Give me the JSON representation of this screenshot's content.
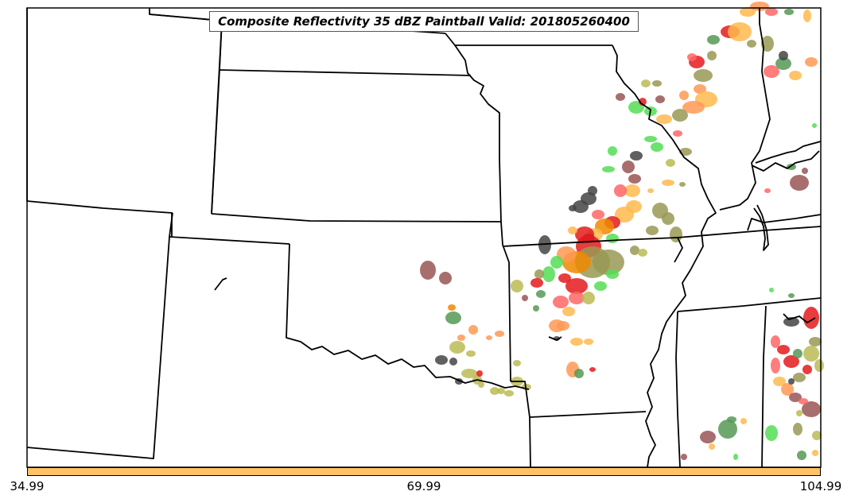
{
  "title": "Composite Reflectivity 35 dBZ Paintball Valid: 201805260400",
  "colors": {
    "colorbar": "#ffc266",
    "state_lines": "#000000",
    "paintball_palette": [
      "#e41a1c",
      "#ff6666",
      "#ff9955",
      "#ffb84d",
      "#ee8800",
      "#bbbb55",
      "#999955",
      "#55dd55",
      "#559955",
      "#444444",
      "#995555"
    ]
  },
  "colorbar": {
    "tick_labels": [
      "34.99",
      "69.99",
      "104.99"
    ]
  },
  "map": {
    "region": "Central United States",
    "features": [
      "state-boundaries",
      "mississippi-river",
      "paintball-storm-cells"
    ]
  }
}
